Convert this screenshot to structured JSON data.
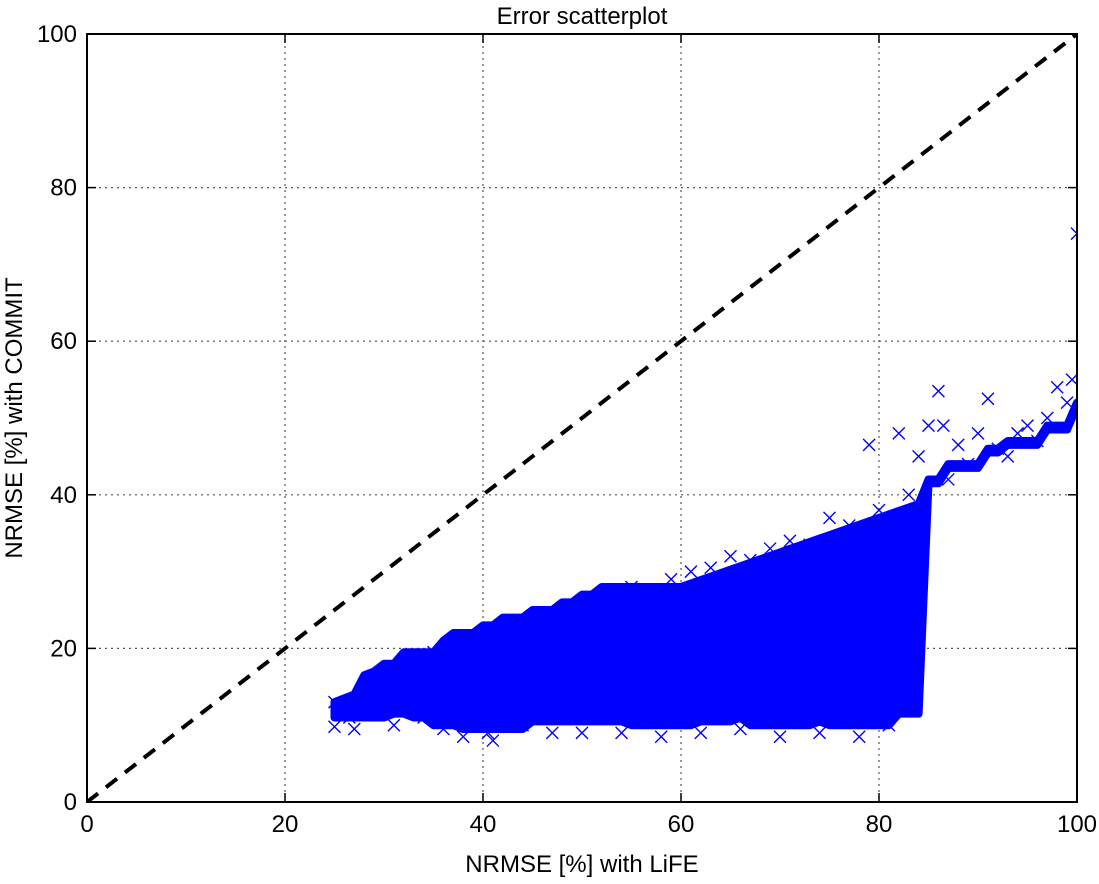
{
  "chart_data": {
    "type": "scatter",
    "title": "Error scatterplot",
    "xlabel": "NRMSE [%] with LiFE",
    "ylabel": "NRMSE [%] with COMMIT",
    "xlim": [
      0,
      100
    ],
    "ylim": [
      0,
      100
    ],
    "xticks": [
      0,
      20,
      40,
      60,
      80,
      100
    ],
    "yticks": [
      0,
      20,
      40,
      60,
      80,
      100
    ],
    "grid": true,
    "grid_style": "dotted",
    "marker": "x",
    "marker_color": "#0000ff",
    "reference_line": {
      "x": [
        0,
        100
      ],
      "y": [
        0,
        100
      ],
      "style": "dashed",
      "color": "#000000"
    },
    "series": [
      {
        "points": [
          [
            25.0,
            13.0
          ],
          [
            25.0,
            9.8
          ],
          [
            26.5,
            11.0
          ],
          [
            27.0,
            9.5
          ],
          [
            28.0,
            12.5
          ],
          [
            29.0,
            14.0
          ],
          [
            30.0,
            13.5
          ],
          [
            30.5,
            16.5
          ],
          [
            31.0,
            10.0
          ],
          [
            31.5,
            17.0
          ],
          [
            32.0,
            12.0
          ],
          [
            33.0,
            18.0
          ],
          [
            34.0,
            11.0
          ],
          [
            35.0,
            19.5
          ],
          [
            36.0,
            9.5
          ],
          [
            37.0,
            14.5
          ],
          [
            38.0,
            8.5
          ],
          [
            38.5,
            21.0
          ],
          [
            39.0,
            12.0
          ],
          [
            40.0,
            22.0
          ],
          [
            40.5,
            9.0
          ],
          [
            41.0,
            8.0
          ],
          [
            42.0,
            18.0
          ],
          [
            43.0,
            23.0
          ],
          [
            44.0,
            10.0
          ],
          [
            45.0,
            24.0
          ],
          [
            46.0,
            14.0
          ],
          [
            47.0,
            9.0
          ],
          [
            48.0,
            25.0
          ],
          [
            49.0,
            17.0
          ],
          [
            50.0,
            9.0
          ],
          [
            51.0,
            26.0
          ],
          [
            52.0,
            12.0
          ],
          [
            53.0,
            27.0
          ],
          [
            54.0,
            9.0
          ],
          [
            55.0,
            28.0
          ],
          [
            56.0,
            15.0
          ],
          [
            57.0,
            27.5
          ],
          [
            58.0,
            8.5
          ],
          [
            59.0,
            29.0
          ],
          [
            60.0,
            20.0
          ],
          [
            61.0,
            30.0
          ],
          [
            62.0,
            9.0
          ],
          [
            63.0,
            30.5
          ],
          [
            64.0,
            16.0
          ],
          [
            65.0,
            32.0
          ],
          [
            66.0,
            9.5
          ],
          [
            67.0,
            31.5
          ],
          [
            68.0,
            22.0
          ],
          [
            69.0,
            33.0
          ],
          [
            70.0,
            8.5
          ],
          [
            71.0,
            34.0
          ],
          [
            72.0,
            18.0
          ],
          [
            73.0,
            33.5
          ],
          [
            74.0,
            9.0
          ],
          [
            75.0,
            37.0
          ],
          [
            76.0,
            25.0
          ],
          [
            77.0,
            36.0
          ],
          [
            78.0,
            8.5
          ],
          [
            79.0,
            46.5
          ],
          [
            80.0,
            38.0
          ],
          [
            81.0,
            10.0
          ],
          [
            82.0,
            48.0
          ],
          [
            83.0,
            40.0
          ],
          [
            84.0,
            45.0
          ],
          [
            85.0,
            49.0
          ],
          [
            86.0,
            53.5
          ],
          [
            86.5,
            49.0
          ],
          [
            87.0,
            42.0
          ],
          [
            88.0,
            46.5
          ],
          [
            89.0,
            44.0
          ],
          [
            90.0,
            48.0
          ],
          [
            91.0,
            52.5
          ],
          [
            92.0,
            46.0
          ],
          [
            93.0,
            45.0
          ],
          [
            94.0,
            48.0
          ],
          [
            95.0,
            49.0
          ],
          [
            96.0,
            47.0
          ],
          [
            97.0,
            50.0
          ],
          [
            98.0,
            54.0
          ],
          [
            99.0,
            52.0
          ],
          [
            99.5,
            55.0
          ],
          [
            100.0,
            74.0
          ]
        ]
      }
    ]
  }
}
